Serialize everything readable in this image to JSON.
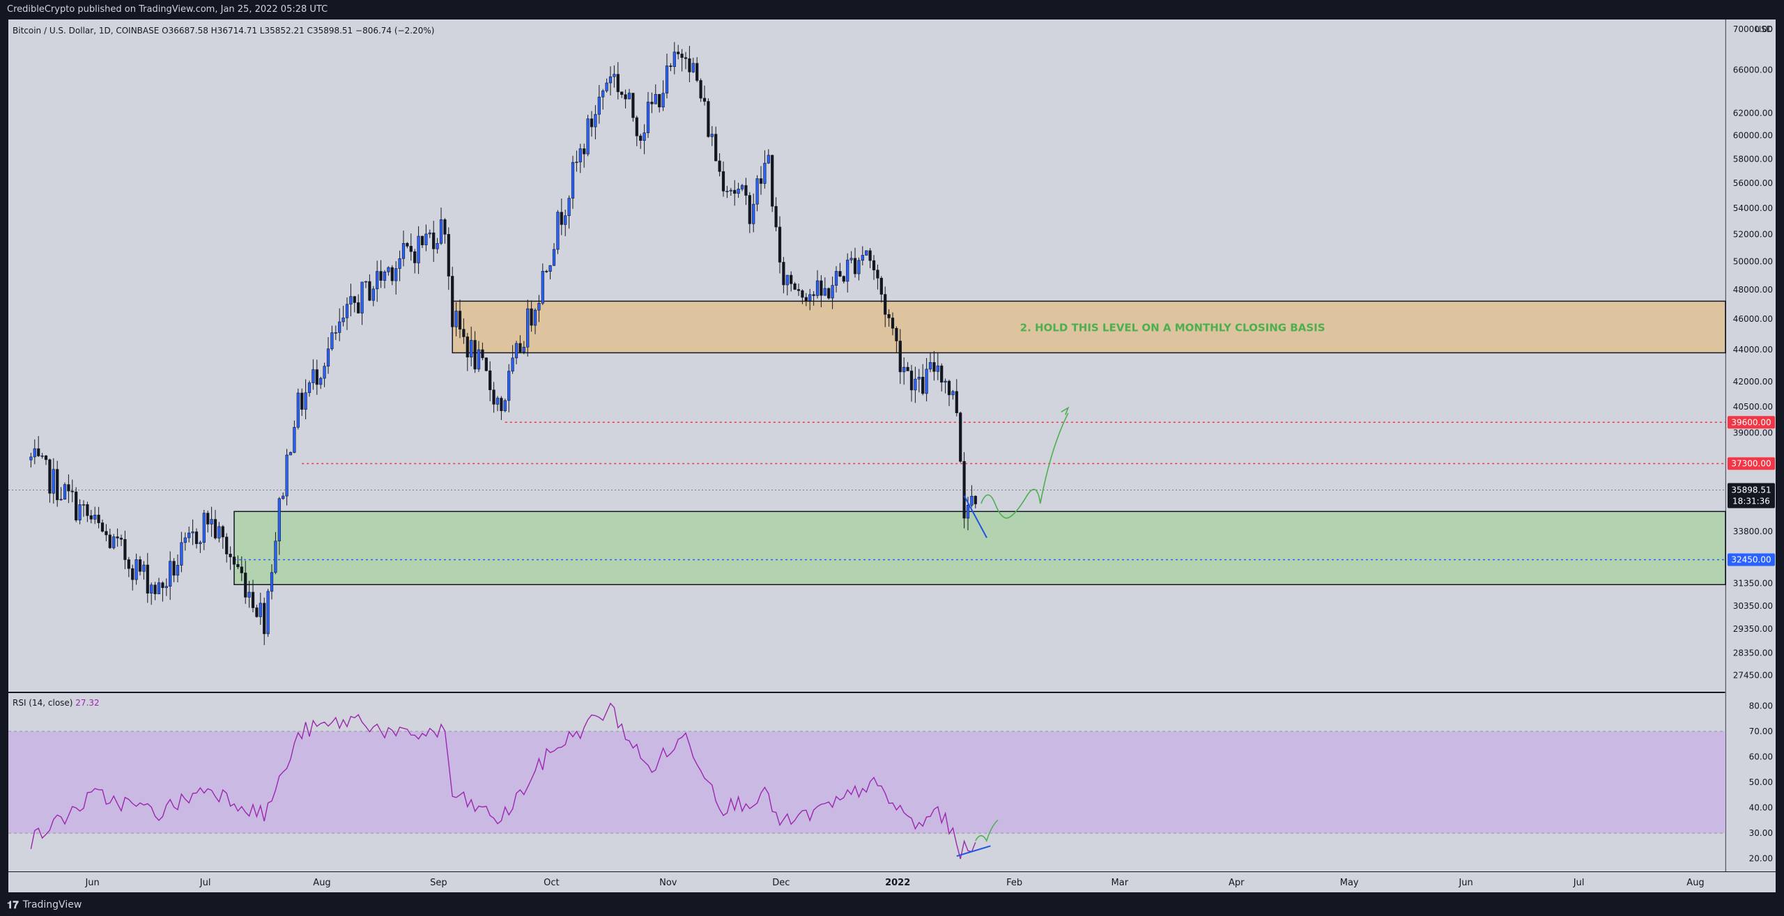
{
  "header": {
    "publish_text": "CredibleCrypto published on TradingView.com, Jan 25, 2022 05:28 UTC"
  },
  "footer": {
    "brand": "TradingView"
  },
  "symbol": {
    "legend": "Bitcoin / U.S. Dollar, 1D, COINBASE",
    "open_label": "O",
    "open": "36687.58",
    "high_label": "H",
    "high": "36714.71",
    "low_label": "L",
    "low": "35852.21",
    "close_label": "C",
    "close": "35898.51",
    "change": "−806.74 (−2.20%)"
  },
  "currency": "USD",
  "colors": {
    "background": "#d1d4dc",
    "frame": "#131722",
    "candle_up": "#2962ff",
    "candle_down": "#131722",
    "resistance_zone": "#e2bf8a",
    "support_zone": "#a8d2a0",
    "rsi_band": "#c7b0e6",
    "rsi_line": "#9c27b0",
    "red_level": "#f23645",
    "blue_level": "#2962ff",
    "annotation_green": "#4caf50",
    "trend_blue": "#1e53e5"
  },
  "chart_data": [
    {
      "type": "candlestick",
      "name": "price",
      "x_axis": {
        "labels": [
          "Jun",
          "Jul",
          "Aug",
          "Sep",
          "Oct",
          "Nov",
          "Dec",
          "2022",
          "Feb",
          "Mar",
          "Apr",
          "May",
          "Jun",
          "Jul",
          "Aug"
        ]
      },
      "y_axis": {
        "scale": "log",
        "range": [
          26800,
          71000
        ],
        "tick_labels": [
          "27450.00",
          "28350.00",
          "29350.00",
          "30350.00",
          "31350.00",
          "33800.00",
          "37300.00",
          "39000.00",
          "40500.00",
          "42000.00",
          "44000.00",
          "46000.00",
          "48000.00",
          "50000.00",
          "52000.00",
          "54000.00",
          "56000.00",
          "58000.00",
          "60000.00",
          "62000.00",
          "66000.00",
          "70000.00"
        ]
      },
      "key_levels": [
        {
          "label": "39600.00",
          "value": 39600,
          "color": "red"
        },
        {
          "label": "37300.00",
          "value": 37300,
          "color": "red"
        },
        {
          "label": "32450.00",
          "value": 32450,
          "color": "blue"
        }
      ],
      "last_price": {
        "label": "35898.51",
        "value": 35898.51,
        "countdown": "18:31:36"
      },
      "zones": [
        {
          "type": "resistance",
          "low": 43800,
          "high": 47200,
          "text": "2. HOLD THIS LEVEL ON A MONTHLY CLOSING BASIS"
        },
        {
          "type": "support",
          "low": 31300,
          "high": 34800,
          "text": ""
        }
      ],
      "anchors": [
        {
          "date": "2021-05-19",
          "price": 37500
        },
        {
          "date": "2021-06-08",
          "price": 33500
        },
        {
          "date": "2021-06-22",
          "price": 31000
        },
        {
          "date": "2021-07-05",
          "price": 34500
        },
        {
          "date": "2021-07-20",
          "price": 29800
        },
        {
          "date": "2021-07-28",
          "price": 40000
        },
        {
          "date": "2021-08-13",
          "price": 47000
        },
        {
          "date": "2021-08-22",
          "price": 49500
        },
        {
          "date": "2021-09-06",
          "price": 52700
        },
        {
          "date": "2021-09-08",
          "price": 46000
        },
        {
          "date": "2021-09-21",
          "price": 40500
        },
        {
          "date": "2021-10-01",
          "price": 48000
        },
        {
          "date": "2021-10-20",
          "price": 66000
        },
        {
          "date": "2021-10-28",
          "price": 60500
        },
        {
          "date": "2021-11-09",
          "price": 68500
        },
        {
          "date": "2021-11-18",
          "price": 57000
        },
        {
          "date": "2021-11-26",
          "price": 54000
        },
        {
          "date": "2021-12-01",
          "price": 58000
        },
        {
          "date": "2021-12-04",
          "price": 49000
        },
        {
          "date": "2021-12-15",
          "price": 47500
        },
        {
          "date": "2021-12-27",
          "price": 51000
        },
        {
          "date": "2022-01-05",
          "price": 43500
        },
        {
          "date": "2022-01-10",
          "price": 41500
        },
        {
          "date": "2022-01-15",
          "price": 43200
        },
        {
          "date": "2022-01-20",
          "price": 40500
        },
        {
          "date": "2022-01-22",
          "price": 35000
        },
        {
          "date": "2022-01-25",
          "price": 35900
        }
      ]
    },
    {
      "type": "line",
      "name": "RSI",
      "legend": "RSI (14, close)",
      "current_value": "27.32",
      "y_axis": {
        "range": [
          15,
          85
        ],
        "tick_labels": [
          "20.00",
          "30.00",
          "40.00",
          "50.00",
          "60.00",
          "70.00",
          "80.00"
        ]
      },
      "band": {
        "low": 30,
        "high": 70
      },
      "anchors": [
        {
          "date": "2021-05-19",
          "value": 27
        },
        {
          "date": "2021-06-05",
          "value": 45
        },
        {
          "date": "2021-06-22",
          "value": 38
        },
        {
          "date": "2021-07-05",
          "value": 48
        },
        {
          "date": "2021-07-20",
          "value": 37
        },
        {
          "date": "2021-07-30",
          "value": 70
        },
        {
          "date": "2021-08-14",
          "value": 75
        },
        {
          "date": "2021-08-24",
          "value": 68
        },
        {
          "date": "2021-09-06",
          "value": 70
        },
        {
          "date": "2021-09-08",
          "value": 45
        },
        {
          "date": "2021-09-21",
          "value": 35
        },
        {
          "date": "2021-10-04",
          "value": 62
        },
        {
          "date": "2021-10-20",
          "value": 79
        },
        {
          "date": "2021-10-30",
          "value": 55
        },
        {
          "date": "2021-11-09",
          "value": 68
        },
        {
          "date": "2021-11-19",
          "value": 40
        },
        {
          "date": "2021-12-01",
          "value": 45
        },
        {
          "date": "2021-12-04",
          "value": 33
        },
        {
          "date": "2021-12-20",
          "value": 42
        },
        {
          "date": "2021-12-28",
          "value": 50
        },
        {
          "date": "2022-01-10",
          "value": 32
        },
        {
          "date": "2022-01-15",
          "value": 40
        },
        {
          "date": "2022-01-21",
          "value": 23
        },
        {
          "date": "2022-01-25",
          "value": 27
        }
      ]
    }
  ]
}
